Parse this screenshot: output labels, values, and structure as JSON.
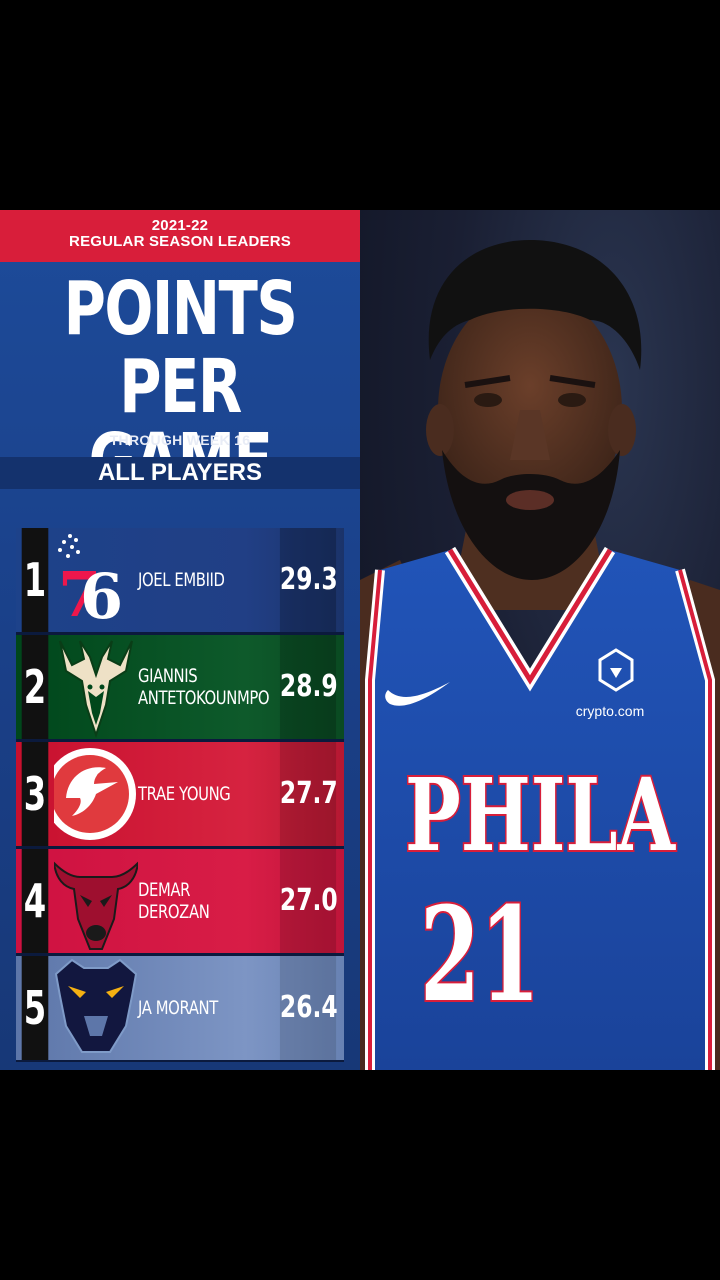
{
  "header": {
    "season": "2021-22",
    "subtitle": "REGULAR SEASON LEADERS",
    "title_line1": "POINTS",
    "title_line2": "PER GAME",
    "through": "THROUGH WEEK 16",
    "category": "ALL PLAYERS"
  },
  "leaders": [
    {
      "rank": "1",
      "name": "JOEL EMBIID",
      "ppg": "29.3",
      "team_logo": "76ers-logo",
      "color": "#1d428a"
    },
    {
      "rank": "2",
      "name": "GIANNIS\nANTETOKOUNMPO",
      "ppg": "28.9",
      "team_logo": "bucks-logo",
      "color": "#0d5a2c"
    },
    {
      "rank": "3",
      "name": "TRAE YOUNG",
      "ppg": "27.7",
      "team_logo": "hawks-logo",
      "color": "#d2203a"
    },
    {
      "rank": "4",
      "name": "DEMAR DEROZAN",
      "ppg": "27.0",
      "team_logo": "bulls-logo",
      "color": "#ce1141"
    },
    {
      "rank": "5",
      "name": "JA MORANT",
      "ppg": "26.4",
      "team_logo": "grizzlies-logo",
      "color": "#6d86b6"
    }
  ],
  "jersey": {
    "city": "PHILA",
    "number": "21",
    "sponsor": "crypto.com"
  }
}
